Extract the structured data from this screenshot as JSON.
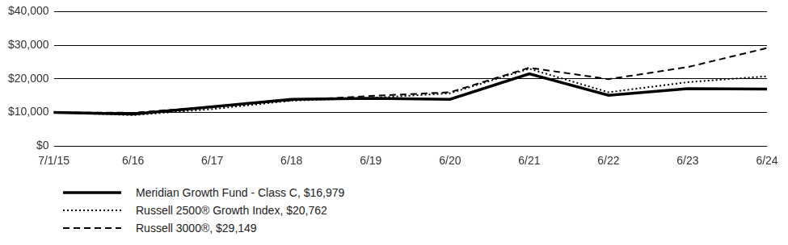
{
  "chart_data": {
    "type": "line",
    "categories": [
      "7/1/15",
      "6/16",
      "6/17",
      "6/18",
      "6/19",
      "6/20",
      "6/21",
      "6/22",
      "6/23",
      "6/24"
    ],
    "series": [
      {
        "name": "Meridian Growth Fund - Class C, $16,979",
        "color": "#000000",
        "line_style": "solid",
        "values": [
          10000,
          9500,
          11700,
          13900,
          14200,
          13900,
          21500,
          15100,
          17100,
          16979
        ]
      },
      {
        "name": "Russell 2500® Growth Index, $20,762",
        "color": "#000000",
        "line_style": "dotted",
        "values": [
          10000,
          9200,
          11000,
          13500,
          14300,
          15700,
          23000,
          16000,
          19000,
          20762
        ]
      },
      {
        "name": "Russell 3000®, $29,149",
        "color": "#000000",
        "line_style": "dashed",
        "values": [
          10000,
          9900,
          11700,
          13600,
          14900,
          16000,
          23300,
          19900,
          23500,
          29149
        ]
      }
    ],
    "ylim": [
      0,
      40000
    ],
    "yticks": [
      {
        "value": 0,
        "label": "$0"
      },
      {
        "value": 10000,
        "label": "$10,000"
      },
      {
        "value": 20000,
        "label": "$20,000"
      },
      {
        "value": 30000,
        "label": "$30,000"
      },
      {
        "value": 40000,
        "label": "$40,000"
      }
    ],
    "grid": true,
    "legend": "bottom"
  }
}
